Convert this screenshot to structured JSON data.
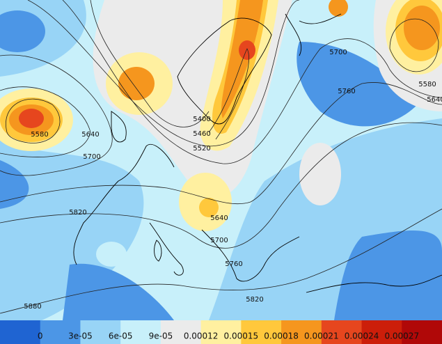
{
  "contour_labels": [
    "5580",
    "5640",
    "5700",
    "5400",
    "5460",
    "5520",
    "5700",
    "5760",
    "5580",
    "5640",
    "5820",
    "5640",
    "5700",
    "5760",
    "5820",
    "5880"
  ],
  "colorbar": {
    "colors": [
      "#1f64d2",
      "#4c96e6",
      "#98d4f6",
      "#c8f0fa",
      "#ebebeb",
      "#fff0a0",
      "#ffc83c",
      "#f5961e",
      "#e6461e",
      "#cc1e0a",
      "#b00808"
    ],
    "labels": [
      "0",
      "3e-05",
      "6e-05",
      "9e-05",
      "0.00012",
      "0.00015",
      "0.00018",
      "0.00021",
      "0.00024",
      "0.00027"
    ]
  }
}
